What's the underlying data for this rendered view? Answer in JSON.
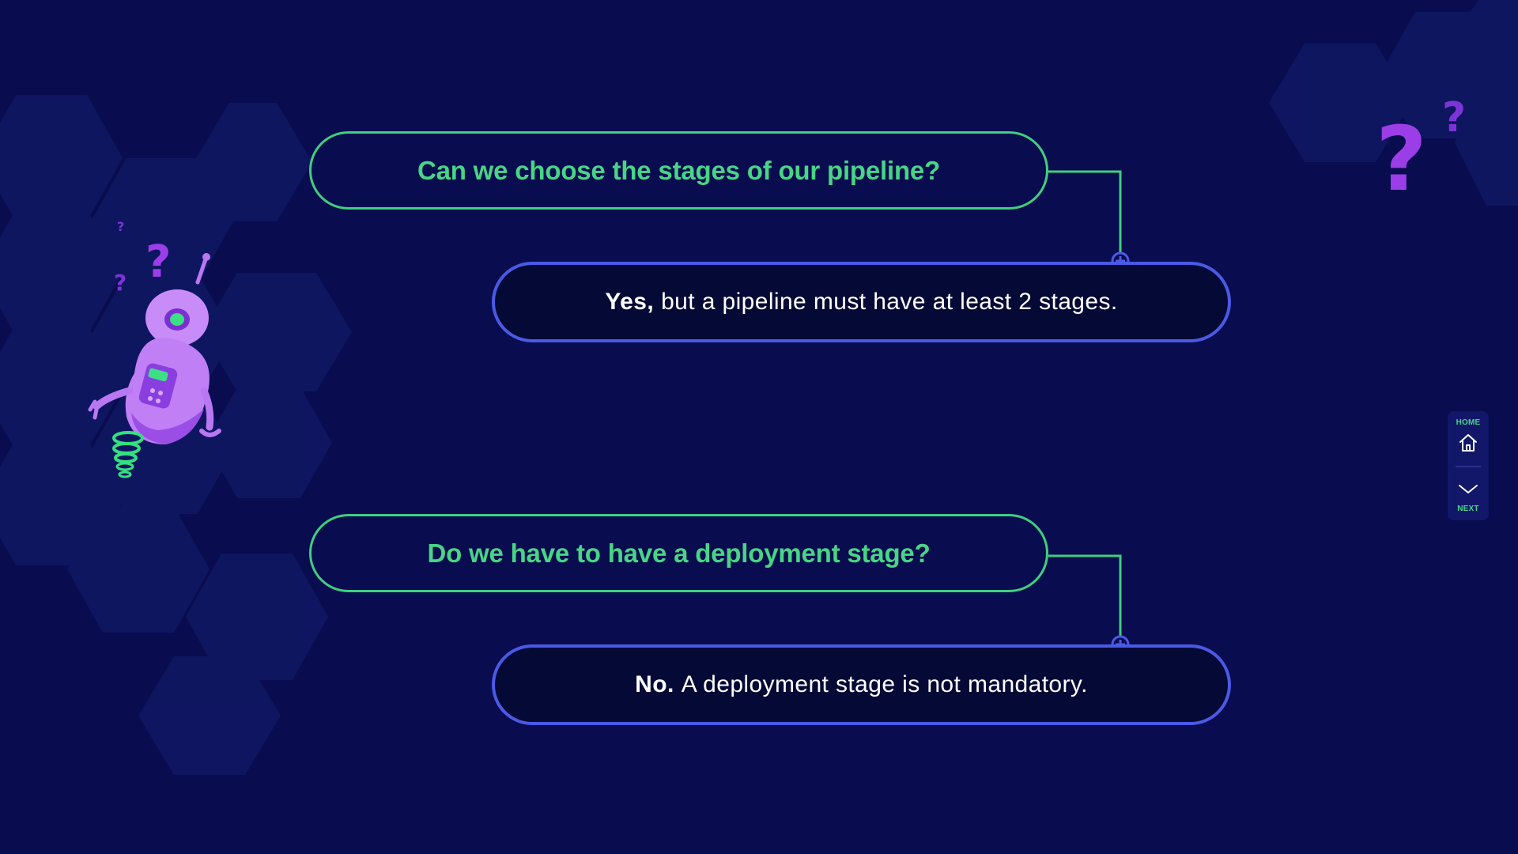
{
  "faq": [
    {
      "question": "Can we choose the stages of our pipeline?",
      "answer_lead": "Yes,",
      "answer_rest": "but a pipeline must have at least 2 stages."
    },
    {
      "question": "Do we have to have a deployment stage?",
      "answer_lead": "No.",
      "answer_rest": "A deployment stage is not mandatory."
    }
  ],
  "nav": {
    "home_label": "HOME",
    "next_label": "NEXT"
  },
  "colors": {
    "background": "#090c4f",
    "question_accent": "#48d585",
    "answer_border": "#4a5ae6",
    "question_mark_purple": "#9b3ee8"
  },
  "icons": {
    "home": "home-icon",
    "next": "chevron-down-icon",
    "connector": "plus-circle-icon"
  }
}
